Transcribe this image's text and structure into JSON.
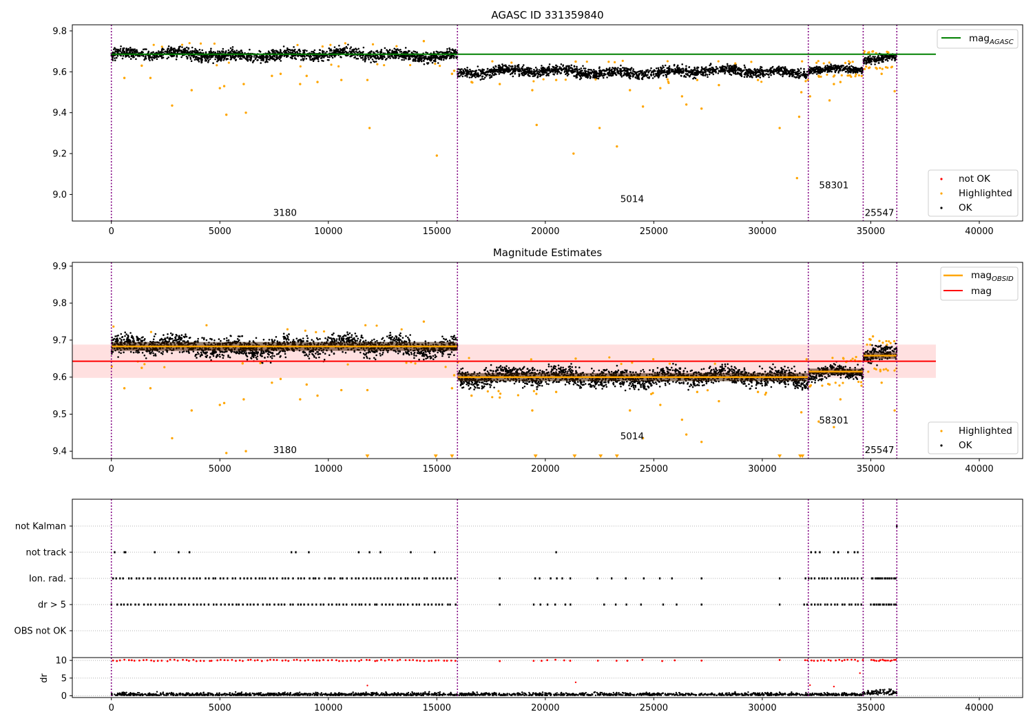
{
  "chart_data": [
    {
      "type": "scatter",
      "title": "AGASC ID 331359840",
      "xlim": [
        -1800,
        42000
      ],
      "ylim": [
        8.87,
        9.83
      ],
      "xticks": [
        0,
        5000,
        10000,
        15000,
        20000,
        25000,
        30000,
        35000,
        40000
      ],
      "yticks": [
        9.0,
        9.2,
        9.4,
        9.6,
        9.8
      ],
      "ytick_labels": [
        "9.0",
        "9.2",
        "9.4",
        "9.6",
        "9.8"
      ],
      "obs_boundaries": [
        0,
        15950,
        32120,
        34650,
        36200
      ],
      "segments": [
        {
          "x0": 0,
          "x1": 15950,
          "mean": 9.683,
          "spread": 0.024
        },
        {
          "x0": 15950,
          "x1": 32120,
          "mean": 9.6,
          "spread": 0.022
        },
        {
          "x0": 32120,
          "x1": 34650,
          "mean": 9.615,
          "spread": 0.016
        },
        {
          "x0": 34650,
          "x1": 36200,
          "mean": 9.658,
          "spread": 0.018
        }
      ],
      "lines": [
        {
          "name": "mag_AGASC",
          "y": 9.686,
          "x0": 0,
          "x1": 38000,
          "color": "#008000"
        }
      ],
      "series": [
        {
          "name": "not OK",
          "color": "#ff0000",
          "x": [],
          "y": []
        },
        {
          "name": "Highlighted",
          "color": "#ffa500",
          "x": [
            600,
            1400,
            1800,
            2800,
            3700,
            5000,
            5200,
            5300,
            6100,
            6200,
            7400,
            7800,
            8700,
            9000,
            9500,
            10600,
            11800,
            11900,
            14400,
            15000,
            15700,
            15800,
            16600,
            17900,
            19400,
            19600,
            20500,
            21300,
            21400,
            22500,
            23300,
            23900,
            24500,
            25300,
            26300,
            26500,
            27000,
            27200,
            28000,
            29800,
            30800,
            31600,
            31700,
            31800,
            32200,
            32600,
            33100,
            33300,
            33600,
            35100,
            35500,
            36100
          ],
          "y": [
            9.57,
            9.63,
            9.57,
            9.435,
            9.51,
            9.52,
            9.53,
            9.39,
            9.54,
            9.4,
            9.58,
            9.59,
            9.54,
            9.58,
            9.55,
            9.56,
            9.56,
            9.325,
            9.75,
            9.19,
            9.59,
            9.605,
            9.55,
            9.54,
            9.51,
            9.34,
            9.56,
            9.2,
            9.65,
            9.325,
            9.235,
            9.51,
            9.43,
            9.52,
            9.48,
            9.44,
            9.56,
            9.42,
            9.535,
            9.56,
            9.325,
            9.08,
            9.38,
            9.5,
            9.48,
            9.58,
            9.46,
            9.54,
            9.55,
            9.7,
            9.59,
            9.505
          ]
        },
        {
          "name": "OK",
          "color": "#000000",
          "x": [],
          "y": []
        }
      ],
      "annotations": [
        {
          "text": "3180",
          "x": 8000,
          "y": 8.895
        },
        {
          "text": "5014",
          "x": 24000,
          "y": 8.962
        },
        {
          "text": "58301",
          "x": 33300,
          "y": 9.03
        },
        {
          "text": "25547",
          "x": 35400,
          "y": 8.895
        }
      ],
      "legend_top": {
        "position": "upper right",
        "entries": [
          {
            "label": "mag",
            "sub": "AGASC",
            "color": "#008000"
          }
        ]
      },
      "legend_bottom": {
        "position": "lower right",
        "entries": [
          {
            "label": "not OK",
            "color": "#ff0000"
          },
          {
            "label": "Highlighted",
            "color": "#ffa500"
          },
          {
            "label": "OK",
            "color": "#000000"
          }
        ]
      }
    },
    {
      "type": "scatter",
      "title": "Magnitude Estimates",
      "xlim": [
        -1800,
        42000
      ],
      "ylim": [
        9.38,
        9.91
      ],
      "xticks": [
        0,
        5000,
        10000,
        15000,
        20000,
        25000,
        30000,
        35000,
        40000
      ],
      "yticks": [
        9.4,
        9.5,
        9.6,
        9.7,
        9.8,
        9.9
      ],
      "ytick_labels": [
        "9.4",
        "9.5",
        "9.6",
        "9.7",
        "9.8",
        "9.9"
      ],
      "obs_boundaries": [
        0,
        15950,
        32120,
        34650,
        36200
      ],
      "segments": [
        {
          "x0": 0,
          "x1": 15950,
          "mean": 9.683,
          "spread": 0.024
        },
        {
          "x0": 15950,
          "x1": 32120,
          "mean": 9.6,
          "spread": 0.022
        },
        {
          "x0": 32120,
          "x1": 34650,
          "mean": 9.615,
          "spread": 0.016
        },
        {
          "x0": 34650,
          "x1": 36200,
          "mean": 9.658,
          "spread": 0.018
        }
      ],
      "band": {
        "y0": 9.598,
        "y1": 9.688,
        "x0": -1800,
        "x1": 38000,
        "color": "#ffcccc"
      },
      "lines": [
        {
          "name": "mag",
          "y": 9.643,
          "x0": -1800,
          "x1": 38000,
          "color": "#ff0000"
        }
      ],
      "series": [
        {
          "name": "Highlighted",
          "color": "#ffa500",
          "x": [
            600,
            1400,
            1800,
            2800,
            3700,
            5000,
            5200,
            5300,
            6100,
            6200,
            7400,
            7800,
            8700,
            9000,
            9500,
            10600,
            11800,
            14400,
            15700,
            15800,
            16600,
            17900,
            19400,
            20500,
            21400,
            23900,
            24500,
            25300,
            26300,
            26500,
            27000,
            27200,
            28000,
            29800,
            31800,
            32200,
            32600,
            33100,
            33300,
            33600,
            35100,
            35500,
            36100
          ],
          "y": [
            9.57,
            9.625,
            9.57,
            9.435,
            9.51,
            9.525,
            9.53,
            9.395,
            9.54,
            9.4,
            9.585,
            9.595,
            9.54,
            9.58,
            9.55,
            9.565,
            9.565,
            9.75,
            9.57,
            9.605,
            9.55,
            9.545,
            9.51,
            9.56,
            9.65,
            9.51,
            9.435,
            9.525,
            9.485,
            9.445,
            9.56,
            9.425,
            9.535,
            9.56,
            9.505,
            9.575,
            9.48,
            9.58,
            9.465,
            9.54,
            9.71,
            9.585,
            9.51
          ]
        },
        {
          "name": "OK",
          "color": "#000000",
          "x": [],
          "y": []
        },
        {
          "name": "below-range",
          "color": "#ffa500",
          "x": [
            11800,
            14950,
            15700,
            19550,
            21350,
            22550,
            23300,
            30800,
            31750,
            31850
          ],
          "y": [
            9.383,
            9.383,
            9.383,
            9.383,
            9.383,
            9.383,
            9.383,
            9.383,
            9.383,
            9.383
          ]
        }
      ],
      "annotations": [
        {
          "text": "3180",
          "x": 8000,
          "y": 9.395
        },
        {
          "text": "5014",
          "x": 24000,
          "y": 9.432
        },
        {
          "text": "58301",
          "x": 33300,
          "y": 9.475
        },
        {
          "text": "25547",
          "x": 35400,
          "y": 9.395
        }
      ],
      "legend_top": {
        "position": "upper right",
        "entries": [
          {
            "label": "mag",
            "sub": "OBSID",
            "color": "#ffa500"
          },
          {
            "label": "mag",
            "color": "#ff0000"
          }
        ]
      },
      "legend_bottom": {
        "position": "lower right",
        "entries": [
          {
            "label": "Highlighted",
            "color": "#ffa500"
          },
          {
            "label": "OK",
            "color": "#000000"
          }
        ]
      }
    },
    {
      "type": "scatter",
      "title": "",
      "xlim": [
        -1800,
        42000
      ],
      "categories": [
        "not Kalman",
        "not track",
        "Ion. rad.",
        "dr > 5",
        "OBS not OK"
      ],
      "obs_boundaries": [
        0,
        15950,
        32120,
        34650,
        36200
      ],
      "flags": {
        "not Kalman": [
          36200
        ],
        "not track": [
          150,
          600,
          650,
          2000,
          3100,
          3600,
          8300,
          8500,
          9100,
          11400,
          11900,
          12400,
          13800,
          14900,
          20500,
          32250,
          32450,
          32650,
          33300,
          33500,
          33950,
          34250,
          34400
        ]
      },
      "flag_ranges": {
        "Ion. rad.": [
          [
            0,
            15950,
            90
          ],
          [
            17900,
            17900,
            1
          ],
          [
            19400,
            21400,
            6
          ],
          [
            22300,
            26500,
            6
          ],
          [
            27200,
            27200,
            1
          ],
          [
            30800,
            30800,
            1
          ],
          [
            31900,
            34700,
            18
          ],
          [
            35000,
            36200,
            14
          ]
        ],
        "dr > 5": [
          [
            0,
            15950,
            90
          ],
          [
            17900,
            17900,
            1
          ],
          [
            19400,
            21400,
            6
          ],
          [
            22300,
            26500,
            6
          ],
          [
            27200,
            27200,
            1
          ],
          [
            30800,
            30800,
            1
          ],
          [
            31900,
            34700,
            18
          ],
          [
            35000,
            36200,
            14
          ]
        ]
      }
    },
    {
      "type": "scatter",
      "title": "",
      "ylabel": "dr",
      "xlim": [
        -1800,
        42000
      ],
      "ylim": [
        -0.5,
        10.8
      ],
      "xticks": [
        0,
        5000,
        10000,
        15000,
        20000,
        25000,
        30000,
        35000,
        40000
      ],
      "yticks": [
        0,
        5,
        10
      ],
      "ytick_labels": [
        "0",
        "5",
        "10"
      ],
      "obs_boundaries": [
        0,
        15950,
        32120,
        34650,
        36200
      ],
      "series": [
        {
          "name": "dr capped",
          "color": "#ff0000",
          "y": 10,
          "ranges": [
            [
              0,
              15950,
              90
            ],
            [
              17900,
              17900,
              1
            ],
            [
              19400,
              21400,
              6
            ],
            [
              22300,
              26500,
              6
            ],
            [
              27200,
              27200,
              1
            ],
            [
              30800,
              30800,
              1
            ],
            [
              31900,
              34700,
              18
            ],
            [
              35000,
              36200,
              14
            ]
          ]
        },
        {
          "name": "dr extra",
          "color": "#ff0000",
          "x": [
            11800,
            21400,
            32200,
            34500,
            33300
          ],
          "y": [
            2.9,
            3.8,
            3.0,
            6.4,
            2.6
          ]
        },
        {
          "name": "dr",
          "color": "#000000",
          "typical": 0.5
        }
      ]
    }
  ]
}
